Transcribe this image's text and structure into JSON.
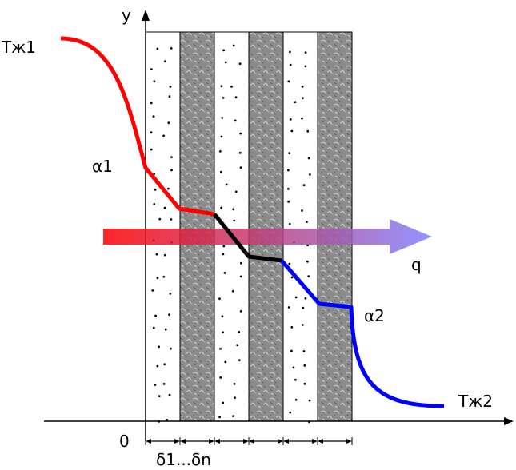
{
  "labels": {
    "axis_y": "y",
    "axis_origin": "0",
    "flux": "q",
    "fluid_temp_1": "Тж1",
    "fluid_temp_2": "Тж2",
    "heat_coeff_1": "α1",
    "heat_coeff_2": "α2",
    "thickness_range": "δ1...δn"
  },
  "layers": [
    {
      "material": "dotted"
    },
    {
      "material": "textured"
    },
    {
      "material": "dotted"
    },
    {
      "material": "textured"
    },
    {
      "material": "dotted"
    },
    {
      "material": "textured"
    }
  ],
  "colors": {
    "hot_curve": "#ff0000",
    "wall_profile": "#000000",
    "cold_curve": "#0000ff",
    "arrow_start": "#ff0000",
    "arrow_end": "#8080ff",
    "textured_layer": "#8c8c8c",
    "dotted_layer": "#ffffff"
  }
}
